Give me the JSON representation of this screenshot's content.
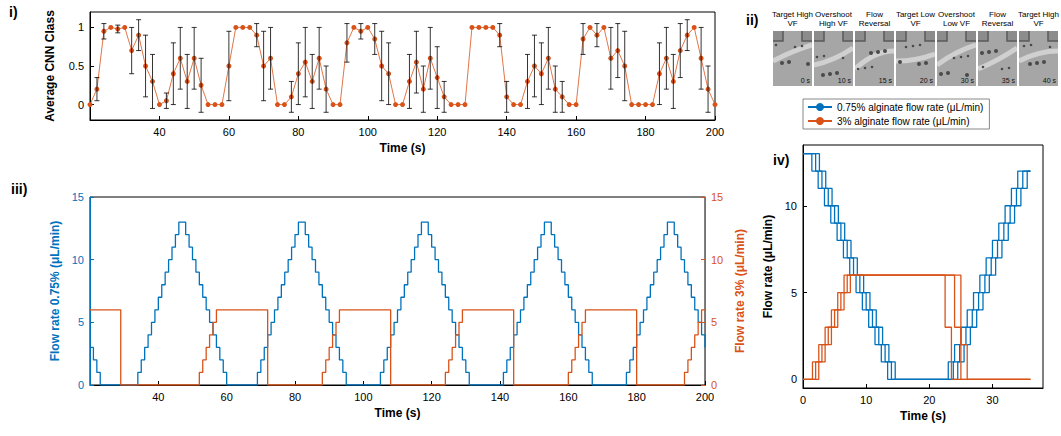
{
  "chart_data": [
    {
      "type": "scatter",
      "title": "i)",
      "xlabel": "Time (s)",
      "ylabel": "Average CNN Class",
      "xlim": [
        20,
        200
      ],
      "xticks": [
        40,
        60,
        80,
        100,
        120,
        140,
        160,
        180,
        200
      ],
      "ylim": [
        -0.2,
        1.2
      ],
      "yticks": [
        0,
        0.5,
        1
      ],
      "grid": false,
      "x": [
        20,
        22,
        24,
        26,
        28,
        30,
        32,
        34,
        36,
        38,
        40,
        42,
        44,
        46,
        48,
        50,
        52,
        54,
        56,
        58,
        60,
        62,
        64,
        66,
        68,
        70,
        72,
        74,
        76,
        78,
        80,
        82,
        84,
        86,
        88,
        90,
        92,
        94,
        96,
        98,
        100,
        102,
        104,
        106,
        108,
        110,
        112,
        114,
        116,
        118,
        120,
        122,
        124,
        126,
        128,
        130,
        132,
        134,
        136,
        138,
        140,
        142,
        144,
        146,
        148,
        150,
        152,
        154,
        156,
        158,
        160,
        162,
        164,
        166,
        168,
        170,
        172,
        174,
        176,
        178,
        180,
        182,
        184,
        186,
        188,
        190,
        192,
        194,
        196,
        198,
        200
      ],
      "series": [
        {
          "color": "#D95319",
          "marker": "circle",
          "line_style": "solid",
          "values": [
            0,
            0.2,
            0.95,
            1,
            0.98,
            1,
            0.7,
            0.9,
            0.5,
            0.3,
            0,
            0.05,
            0.4,
            0.6,
            0.3,
            0.6,
            0.25,
            0,
            0,
            0,
            0.5,
            1,
            1,
            1,
            0.9,
            0.5,
            0.6,
            0,
            0,
            0.1,
            0.4,
            0.55,
            0.3,
            0.6,
            0.2,
            0,
            0,
            0.8,
            1,
            0.95,
            1,
            0.85,
            0.5,
            0.4,
            0,
            0,
            0.3,
            0.55,
            0.2,
            0.6,
            0.35,
            0.1,
            0,
            0,
            0,
            1,
            1,
            1,
            1,
            0.9,
            0.1,
            0,
            0,
            0.3,
            0.5,
            0.4,
            0.6,
            0.2,
            0.1,
            0,
            0,
            0.85,
            1,
            0.9,
            1,
            0.6,
            0.7,
            0.5,
            0,
            0,
            0,
            0,
            0.4,
            0.6,
            0.3,
            0.7,
            0.9,
            1,
            0.6,
            0.2,
            0
          ],
          "errors": [
            0,
            0.15,
            0.1,
            0,
            0.05,
            0,
            0.3,
            0.2,
            0.4,
            0.35,
            0,
            0.1,
            0.4,
            0.4,
            0.35,
            0.4,
            0.35,
            0,
            0,
            0,
            0.45,
            0,
            0,
            0,
            0.15,
            0.45,
            0.4,
            0,
            0,
            0.2,
            0.4,
            0.45,
            0.35,
            0.4,
            0.3,
            0,
            0,
            0.25,
            0,
            0.1,
            0,
            0.2,
            0.45,
            0.4,
            0,
            0,
            0.35,
            0.4,
            0.3,
            0.4,
            0.4,
            0.2,
            0,
            0,
            0,
            0,
            0,
            0,
            0,
            0.15,
            0.2,
            0,
            0,
            0.35,
            0.4,
            0.4,
            0.4,
            0.3,
            0.2,
            0,
            0,
            0.2,
            0,
            0.15,
            0,
            0.4,
            0.35,
            0.45,
            0,
            0,
            0,
            0,
            0.4,
            0.4,
            0.35,
            0.35,
            0.2,
            0,
            0.4,
            0.3,
            0
          ]
        }
      ]
    },
    {
      "type": "line",
      "title": "iii)",
      "xlabel": "Time (s)",
      "ylabel": "Flow rate 0.75% (μL/min)",
      "y2label": "Flow rate 3% (μL/min)",
      "xlim": [
        20,
        200
      ],
      "xticks": [
        40,
        60,
        80,
        100,
        120,
        140,
        160,
        180,
        200
      ],
      "ylim": [
        0,
        15
      ],
      "yticks": [
        0,
        5,
        10,
        15
      ],
      "y2lim": [
        0,
        15
      ],
      "y2ticks": [
        0,
        5,
        10,
        15
      ],
      "grid": false,
      "series": [
        {
          "color": "#0072BD",
          "line_style": "step",
          "x": [
            20,
            21,
            22,
            23,
            34,
            35,
            36,
            37,
            38,
            39,
            40,
            41,
            42,
            43,
            44,
            45,
            46,
            48,
            49,
            50,
            51,
            52,
            53,
            54,
            55,
            56,
            57,
            58,
            59,
            60,
            69,
            70,
            71,
            72,
            73,
            74,
            75,
            76,
            77,
            78,
            79,
            80,
            81,
            83,
            84,
            85,
            86,
            87,
            88,
            89,
            90,
            91,
            92,
            93,
            94,
            95,
            105,
            106,
            107,
            108,
            109,
            110,
            111,
            112,
            113,
            114,
            115,
            116,
            117,
            119,
            120,
            121,
            122,
            123,
            124,
            125,
            126,
            127,
            128,
            129,
            130,
            131,
            141,
            142,
            143,
            144,
            145,
            146,
            147,
            148,
            149,
            150,
            151,
            152,
            153,
            155,
            156,
            157,
            158,
            159,
            160,
            161,
            162,
            163,
            164,
            165,
            166,
            167,
            177,
            178,
            179,
            180,
            181,
            182,
            183,
            184,
            185,
            186,
            187,
            188,
            189,
            191,
            192,
            193,
            194,
            195,
            196,
            197,
            198,
            199,
            200
          ],
          "values": [
            3,
            2,
            1,
            0,
            1,
            2,
            3,
            4,
            5,
            6,
            7,
            8,
            9,
            10,
            11,
            12,
            13,
            12,
            11,
            10,
            9,
            8,
            7,
            6,
            5,
            4,
            3,
            2,
            1,
            0,
            1,
            2,
            3,
            4,
            5,
            6,
            7,
            8,
            9,
            10,
            11,
            12,
            13,
            12,
            11,
            10,
            9,
            8,
            7,
            6,
            5,
            4,
            3,
            2,
            1,
            0,
            1,
            2,
            3,
            4,
            5,
            6,
            7,
            8,
            9,
            10,
            11,
            12,
            13,
            12,
            11,
            10,
            9,
            8,
            7,
            6,
            5,
            4,
            3,
            2,
            1,
            0,
            1,
            2,
            3,
            4,
            5,
            6,
            7,
            8,
            9,
            10,
            11,
            12,
            13,
            12,
            11,
            10,
            9,
            8,
            7,
            6,
            5,
            4,
            3,
            2,
            1,
            0,
            1,
            2,
            3,
            4,
            5,
            6,
            7,
            8,
            9,
            10,
            11,
            12,
            13,
            12,
            11,
            10,
            9,
            8,
            7,
            6,
            5,
            4,
            3
          ]
        },
        {
          "color": "#D95319",
          "line_style": "step",
          "axis": "y2",
          "x": [
            20,
            29,
            52,
            53,
            54,
            55,
            56,
            57,
            72,
            88,
            89,
            90,
            91,
            92,
            93,
            108,
            124,
            125,
            126,
            127,
            128,
            129,
            144,
            160,
            161,
            162,
            163,
            164,
            165,
            180,
            194,
            195,
            196,
            197,
            198,
            199,
            200
          ],
          "values": [
            6,
            0,
            1,
            2,
            3,
            4,
            5,
            6,
            0,
            1,
            2,
            3,
            4,
            5,
            6,
            0,
            1,
            2,
            3,
            4,
            5,
            6,
            0,
            1,
            2,
            3,
            4,
            5,
            6,
            0,
            1,
            2,
            3,
            4,
            5,
            6,
            6
          ]
        }
      ]
    },
    {
      "type": "line",
      "title": "iv)",
      "xlabel": "Time (s)",
      "ylabel": "Flow rate (μL/min)",
      "xlim": [
        0,
        38
      ],
      "xticks": [
        0,
        10,
        20,
        30
      ],
      "ylim": [
        -0.5,
        13.5
      ],
      "yticks": [
        0,
        5,
        10
      ],
      "grid": false,
      "legend": "top-left",
      "series": [
        {
          "name": "0.75% alginate flow rate (μL/min)",
          "color": "#0072BD",
          "line_style": "step",
          "x": [
            0,
            2,
            3,
            4,
            5,
            6,
            7,
            8,
            9,
            10,
            11,
            12,
            13,
            14,
            23,
            24,
            25,
            26,
            27,
            28,
            29,
            30,
            31,
            32,
            33,
            34,
            36
          ],
          "values": [
            13,
            12,
            11,
            10,
            9,
            8,
            7,
            6,
            5,
            4,
            3,
            2,
            1,
            0,
            1,
            2,
            3,
            4,
            5,
            6,
            7,
            8,
            9,
            10,
            11,
            12,
            12
          ]
        },
        {
          "name": "0.75% alginate flow rate (μL/min)",
          "color": "#0072BD",
          "line_style": "step",
          "x": [
            0,
            2.6,
            3.6,
            4.6,
            5.6,
            6.6,
            7.6,
            8.6,
            9.6,
            10.6,
            11.6,
            12.6,
            13.6,
            14.6,
            23.8,
            24.8,
            25.8,
            26.8,
            27.8,
            28.8,
            29.8,
            30.8,
            31.8,
            32.8,
            33.8,
            34.8,
            36
          ],
          "values": [
            13,
            12,
            11,
            10,
            9,
            8,
            7,
            6,
            5,
            4,
            3,
            2,
            1,
            0,
            1,
            2,
            3,
            4,
            5,
            6,
            7,
            8,
            9,
            10,
            11,
            12,
            12
          ]
        },
        {
          "name": "0.75% alginate flow rate (μL/min)",
          "color": "#0072BD",
          "line_style": "step",
          "x": [
            0,
            1.4,
            2.4,
            3.4,
            4.4,
            5.4,
            6.4,
            7.4,
            8.4,
            9.4,
            10.4,
            11.4,
            12.4,
            13.4,
            24.5,
            25.5,
            26.5,
            27.5,
            28.5,
            29.5,
            30.5,
            31.5,
            32.5,
            33.5,
            34.5,
            35.5,
            36
          ],
          "values": [
            13,
            12,
            11,
            10,
            9,
            8,
            7,
            6,
            5,
            4,
            3,
            2,
            1,
            0,
            1,
            2,
            3,
            4,
            5,
            6,
            7,
            8,
            9,
            10,
            11,
            12,
            12
          ]
        },
        {
          "name": "3% alginate flow rate (μL/min)",
          "color": "#D95319",
          "line_style": "step",
          "x": [
            0,
            1.5,
            2.5,
            3.5,
            4.5,
            5.5,
            6.5,
            22.5,
            23.5,
            36
          ],
          "values": [
            0,
            1,
            2,
            3,
            4,
            5,
            6,
            3,
            0,
            0
          ]
        },
        {
          "name": "3% alginate flow rate (μL/min)",
          "color": "#D95319",
          "line_style": "step",
          "x": [
            0,
            2,
            3,
            4,
            5,
            6,
            7,
            24,
            25,
            36
          ],
          "values": [
            0,
            1,
            2,
            3,
            4,
            5,
            6,
            3,
            0,
            0
          ]
        },
        {
          "name": "3% alginate flow rate (μL/min)",
          "color": "#D95319",
          "line_style": "step",
          "x": [
            0,
            2.5,
            3.5,
            4.5,
            5.5,
            6.5,
            7.5,
            25,
            26,
            36
          ],
          "values": [
            0,
            1,
            2,
            3,
            4,
            5,
            6,
            2,
            0,
            0
          ]
        }
      ]
    }
  ],
  "image_strip": {
    "title": "ii)",
    "frames": [
      {
        "label": "Target High VF",
        "time": "0 s"
      },
      {
        "label": "Overshoot High VF",
        "time": "10 s"
      },
      {
        "label": "Flow Reversal",
        "time": "15 s"
      },
      {
        "label": "Target Low VF",
        "time": "20 s"
      },
      {
        "label": "Overshoot Low VF",
        "time": "30 s"
      },
      {
        "label": "Flow Reversal",
        "time": "35 s"
      },
      {
        "label": "Target High VF",
        "time": "40 s"
      }
    ]
  }
}
